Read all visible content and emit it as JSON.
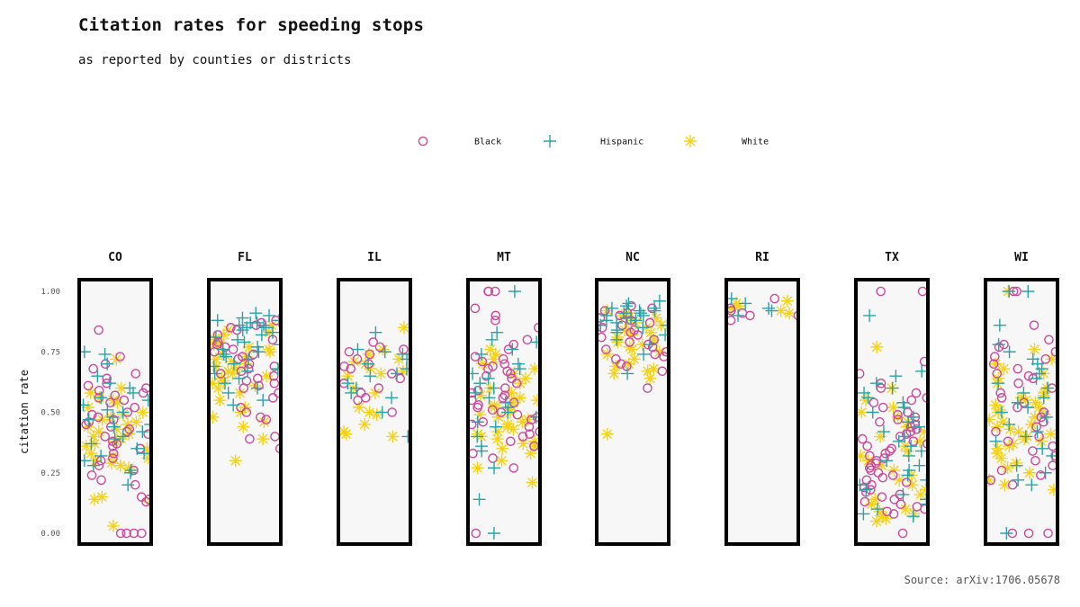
{
  "chart_data": {
    "type": "scatter",
    "title": "Citation rates for speeding stops",
    "subtitle": "as reported by counties or districts",
    "source": "Source: arXiv:1706.05678",
    "ylabel": "citation rate",
    "xlabel": "",
    "ylim": [
      0,
      1
    ],
    "yticks": [
      "0.00",
      "0.25",
      "0.50",
      "0.75",
      "1.00"
    ],
    "ytick_values": [
      0,
      0.25,
      0.5,
      0.75,
      1.0
    ],
    "legend_position": "top-center",
    "series": [
      {
        "name": "Black",
        "color": "#cc4a9c",
        "marker": "circle"
      },
      {
        "name": "Hispanic",
        "color": "#2aa3a8",
        "marker": "plus"
      },
      {
        "name": "White",
        "color": "#f5d21a",
        "marker": "asterisk"
      }
    ],
    "panels": [
      {
        "state": "CO",
        "black": [
          0.84,
          0.73,
          0.7,
          0.68,
          0.66,
          0.64,
          0.62,
          0.61,
          0.6,
          0.59,
          0.58,
          0.57,
          0.56,
          0.55,
          0.54,
          0.52,
          0.5,
          0.49,
          0.48,
          0.47,
          0.46,
          0.45,
          0.44,
          0.43,
          0.42,
          0.41,
          0.4,
          0.38,
          0.37,
          0.36,
          0.35,
          0.33,
          0.31,
          0.3,
          0.28,
          0.26,
          0.24,
          0.22,
          0.2,
          0.15,
          0.14,
          0.13,
          0.0,
          0.0,
          0.0,
          0.0
        ],
        "hispanic": [
          0.75,
          0.74,
          0.7,
          0.65,
          0.62,
          0.6,
          0.58,
          0.56,
          0.55,
          0.53,
          0.51,
          0.5,
          0.48,
          0.47,
          0.45,
          0.44,
          0.42,
          0.4,
          0.39,
          0.37,
          0.35,
          0.33,
          0.32,
          0.3,
          0.28,
          0.26,
          0.25,
          0.2
        ],
        "white": [
          0.72,
          0.6,
          0.58,
          0.56,
          0.55,
          0.54,
          0.52,
          0.5,
          0.49,
          0.48,
          0.47,
          0.46,
          0.45,
          0.44,
          0.43,
          0.42,
          0.41,
          0.4,
          0.39,
          0.38,
          0.37,
          0.36,
          0.35,
          0.34,
          0.33,
          0.32,
          0.31,
          0.3,
          0.29,
          0.28,
          0.27,
          0.15,
          0.14,
          0.13,
          0.03
        ]
      },
      {
        "state": "FL",
        "black": [
          0.88,
          0.87,
          0.86,
          0.85,
          0.84,
          0.82,
          0.8,
          0.79,
          0.78,
          0.77,
          0.76,
          0.75,
          0.74,
          0.73,
          0.72,
          0.7,
          0.69,
          0.68,
          0.67,
          0.66,
          0.65,
          0.64,
          0.63,
          0.62,
          0.61,
          0.6,
          0.58,
          0.56,
          0.52,
          0.5,
          0.48,
          0.47,
          0.4,
          0.39,
          0.35
        ],
        "hispanic": [
          0.91,
          0.9,
          0.89,
          0.88,
          0.88,
          0.87,
          0.87,
          0.86,
          0.86,
          0.85,
          0.85,
          0.84,
          0.83,
          0.82,
          0.81,
          0.8,
          0.79,
          0.78,
          0.77,
          0.76,
          0.75,
          0.74,
          0.73,
          0.72,
          0.7,
          0.69,
          0.68,
          0.67,
          0.66,
          0.64,
          0.62,
          0.6,
          0.58,
          0.55,
          0.53
        ],
        "white": [
          0.86,
          0.84,
          0.83,
          0.82,
          0.8,
          0.79,
          0.78,
          0.77,
          0.76,
          0.75,
          0.74,
          0.73,
          0.72,
          0.71,
          0.7,
          0.69,
          0.68,
          0.67,
          0.66,
          0.65,
          0.64,
          0.63,
          0.62,
          0.61,
          0.6,
          0.58,
          0.55,
          0.52,
          0.5,
          0.48,
          0.46,
          0.44,
          0.39,
          0.3
        ]
      },
      {
        "state": "IL",
        "black": [
          0.79,
          0.77,
          0.76,
          0.75,
          0.74,
          0.72,
          0.7,
          0.69,
          0.68,
          0.66,
          0.64,
          0.62,
          0.6,
          0.58,
          0.56,
          0.55,
          0.5
        ],
        "hispanic": [
          0.83,
          0.76,
          0.75,
          0.74,
          0.72,
          0.7,
          0.68,
          0.66,
          0.65,
          0.62,
          0.6,
          0.58,
          0.56,
          0.5,
          0.4
        ],
        "white": [
          0.85,
          0.76,
          0.74,
          0.72,
          0.71,
          0.7,
          0.68,
          0.67,
          0.66,
          0.65,
          0.6,
          0.58,
          0.52,
          0.5,
          0.49,
          0.45,
          0.42,
          0.41,
          0.4
        ]
      },
      {
        "state": "MT",
        "black": [
          1.0,
          1.0,
          1.0,
          0.93,
          0.9,
          0.88,
          0.85,
          0.8,
          0.78,
          0.76,
          0.73,
          0.72,
          0.71,
          0.7,
          0.69,
          0.68,
          0.67,
          0.66,
          0.65,
          0.64,
          0.62,
          0.6,
          0.59,
          0.58,
          0.57,
          0.56,
          0.55,
          0.54,
          0.53,
          0.52,
          0.51,
          0.5,
          0.49,
          0.48,
          0.47,
          0.46,
          0.45,
          0.44,
          0.42,
          0.41,
          0.4,
          0.38,
          0.36,
          0.33,
          0.31,
          0.27,
          0.0
        ],
        "hispanic": [
          1.0,
          0.83,
          0.8,
          0.79,
          0.76,
          0.74,
          0.7,
          0.68,
          0.66,
          0.64,
          0.62,
          0.6,
          0.58,
          0.56,
          0.54,
          0.52,
          0.5,
          0.48,
          0.46,
          0.44,
          0.4,
          0.36,
          0.34,
          0.27,
          0.14,
          0.0
        ],
        "white": [
          0.76,
          0.74,
          0.72,
          0.7,
          0.68,
          0.66,
          0.64,
          0.62,
          0.6,
          0.58,
          0.57,
          0.56,
          0.55,
          0.54,
          0.53,
          0.52,
          0.51,
          0.5,
          0.49,
          0.48,
          0.47,
          0.46,
          0.45,
          0.44,
          0.43,
          0.42,
          0.41,
          0.4,
          0.39,
          0.38,
          0.37,
          0.36,
          0.35,
          0.33,
          0.3,
          0.27,
          0.21
        ]
      },
      {
        "state": "NC",
        "black": [
          0.94,
          0.93,
          0.92,
          0.91,
          0.9,
          0.89,
          0.88,
          0.87,
          0.86,
          0.85,
          0.84,
          0.83,
          0.82,
          0.81,
          0.8,
          0.79,
          0.78,
          0.77,
          0.76,
          0.75,
          0.74,
          0.73,
          0.72,
          0.7,
          0.69,
          0.67,
          0.6
        ],
        "hispanic": [
          0.96,
          0.95,
          0.94,
          0.93,
          0.93,
          0.92,
          0.92,
          0.91,
          0.91,
          0.9,
          0.9,
          0.89,
          0.89,
          0.88,
          0.88,
          0.87,
          0.86,
          0.86,
          0.85,
          0.84,
          0.83,
          0.82,
          0.8,
          0.78,
          0.74,
          0.66
        ],
        "white": [
          0.92,
          0.91,
          0.9,
          0.89,
          0.88,
          0.87,
          0.86,
          0.85,
          0.84,
          0.83,
          0.82,
          0.81,
          0.8,
          0.79,
          0.78,
          0.77,
          0.76,
          0.75,
          0.74,
          0.72,
          0.7,
          0.69,
          0.68,
          0.67,
          0.66,
          0.64,
          0.41
        ]
      },
      {
        "state": "RI",
        "black": [
          0.97,
          0.93,
          0.92,
          0.91,
          0.9,
          0.9,
          0.88
        ],
        "hispanic": [
          0.97,
          0.95,
          0.93,
          0.92,
          0.9
        ],
        "white": [
          0.96,
          0.95,
          0.94,
          0.93,
          0.92,
          0.91
        ]
      },
      {
        "state": "TX",
        "black": [
          1.0,
          1.0,
          0.71,
          0.66,
          0.62,
          0.6,
          0.58,
          0.56,
          0.55,
          0.54,
          0.52,
          0.5,
          0.49,
          0.48,
          0.47,
          0.46,
          0.45,
          0.44,
          0.43,
          0.42,
          0.41,
          0.4,
          0.39,
          0.38,
          0.37,
          0.36,
          0.35,
          0.34,
          0.33,
          0.32,
          0.31,
          0.3,
          0.29,
          0.28,
          0.27,
          0.26,
          0.25,
          0.24,
          0.23,
          0.22,
          0.21,
          0.2,
          0.19,
          0.18,
          0.17,
          0.16,
          0.15,
          0.14,
          0.13,
          0.12,
          0.11,
          0.1,
          0.09,
          0.08,
          0.0
        ],
        "hispanic": [
          0.9,
          0.67,
          0.65,
          0.62,
          0.6,
          0.58,
          0.56,
          0.54,
          0.52,
          0.5,
          0.48,
          0.46,
          0.44,
          0.42,
          0.4,
          0.38,
          0.36,
          0.34,
          0.32,
          0.3,
          0.28,
          0.26,
          0.24,
          0.22,
          0.2,
          0.18,
          0.16,
          0.14,
          0.12,
          0.1,
          0.08,
          0.07
        ],
        "white": [
          0.77,
          0.6,
          0.55,
          0.52,
          0.5,
          0.48,
          0.46,
          0.44,
          0.42,
          0.4,
          0.38,
          0.36,
          0.34,
          0.32,
          0.3,
          0.28,
          0.26,
          0.24,
          0.22,
          0.2,
          0.18,
          0.16,
          0.14,
          0.12,
          0.1,
          0.09,
          0.08,
          0.07,
          0.06,
          0.05
        ]
      },
      {
        "state": "WI",
        "black": [
          1.0,
          1.0,
          0.86,
          0.8,
          0.78,
          0.77,
          0.75,
          0.73,
          0.72,
          0.7,
          0.68,
          0.66,
          0.65,
          0.64,
          0.62,
          0.6,
          0.58,
          0.56,
          0.54,
          0.52,
          0.5,
          0.48,
          0.46,
          0.44,
          0.42,
          0.4,
          0.38,
          0.36,
          0.34,
          0.32,
          0.3,
          0.28,
          0.26,
          0.24,
          0.22,
          0.2,
          0.0,
          0.0,
          0.0
        ],
        "hispanic": [
          1.0,
          1.0,
          0.86,
          0.78,
          0.75,
          0.72,
          0.7,
          0.68,
          0.66,
          0.64,
          0.62,
          0.6,
          0.58,
          0.56,
          0.54,
          0.52,
          0.5,
          0.48,
          0.45,
          0.42,
          0.4,
          0.38,
          0.35,
          0.32,
          0.28,
          0.25,
          0.22,
          0.2,
          0.0
        ],
        "white": [
          1.0,
          0.76,
          0.72,
          0.7,
          0.68,
          0.66,
          0.64,
          0.62,
          0.6,
          0.58,
          0.57,
          0.56,
          0.55,
          0.54,
          0.53,
          0.52,
          0.51,
          0.5,
          0.49,
          0.48,
          0.47,
          0.46,
          0.45,
          0.44,
          0.43,
          0.42,
          0.41,
          0.4,
          0.39,
          0.38,
          0.37,
          0.36,
          0.35,
          0.33,
          0.31,
          0.29,
          0.27,
          0.25,
          0.22,
          0.2,
          0.18
        ]
      }
    ]
  }
}
